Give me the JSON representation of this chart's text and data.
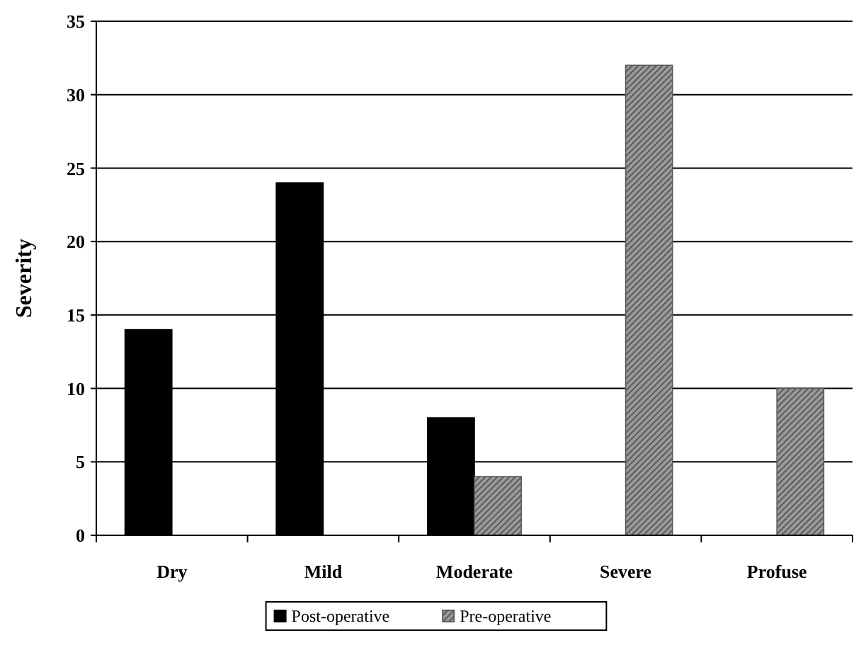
{
  "chart_data": {
    "type": "bar",
    "ylabel": "Severity",
    "categories": [
      "Dry",
      "Mild",
      "Moderate",
      "Severe",
      "Profuse"
    ],
    "series": [
      {
        "name": "Post-operative",
        "color": "#000000",
        "values": [
          14,
          24,
          8,
          null,
          null
        ]
      },
      {
        "name": "Pre-operative",
        "color": "#5a5a5a",
        "values": [
          null,
          null,
          4,
          32,
          10
        ]
      }
    ],
    "ylim": [
      0,
      35
    ],
    "yticks": [
      0,
      5,
      10,
      15,
      20,
      25,
      30,
      35
    ],
    "grid": "y",
    "legend": "bottom"
  }
}
